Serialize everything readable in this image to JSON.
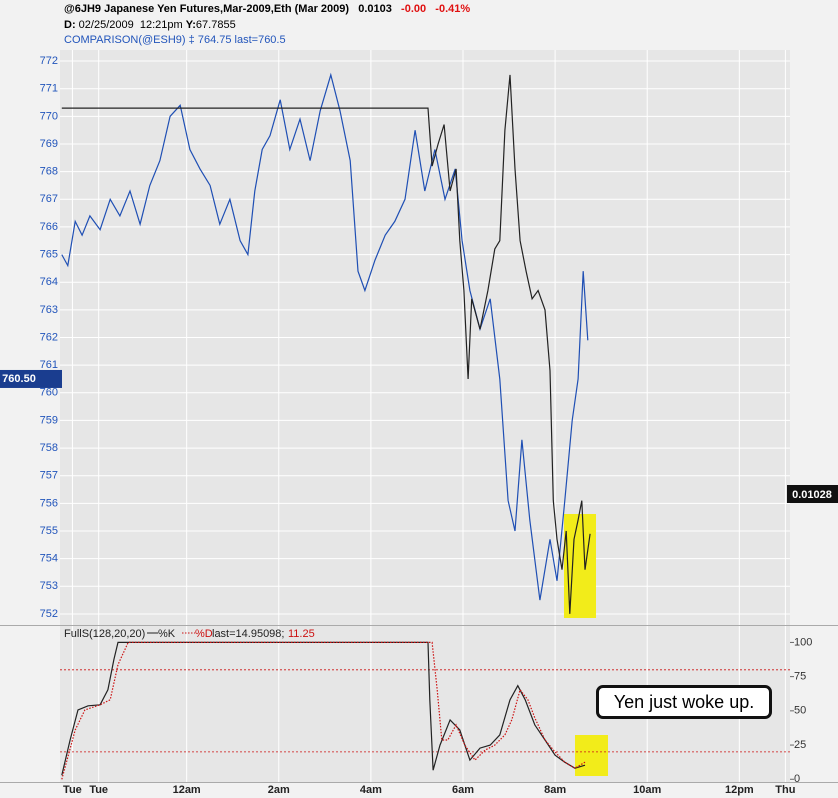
{
  "chart_data": [
    {
      "type": "line",
      "last_price": "0.0103",
      "change": "-0.00",
      "change_pct": "-0.41%",
      "cursor_label": "D:",
      "cursor_date": "02/25/2009",
      "cursor_time": "12:21pm",
      "cursor_y_label": "Y:",
      "cursor_y": "67.7855",
      "comparison_info": "‡ 764.75 last=760.5",
      "left_marker": {
        "value": 760.5,
        "label": "760.50"
      },
      "right_marker": "0.01028",
      "xlim": [
        21.25,
        37.1
      ],
      "ylim": [
        751.6,
        772.4
      ],
      "yticks": [
        752,
        753,
        754,
        755,
        756,
        757,
        758,
        759,
        760,
        761,
        762,
        763,
        764,
        765,
        766,
        767,
        768,
        769,
        770,
        771,
        772
      ],
      "grid": true,
      "series": [
        {
          "name": "COMPARISON(@ESH9)",
          "color": "#1f4fb4",
          "x": [
            21.29,
            21.42,
            21.58,
            21.73,
            21.9,
            22.12,
            22.34,
            22.55,
            22.77,
            22.99,
            23.2,
            23.42,
            23.64,
            23.86,
            24.07,
            24.29,
            24.51,
            24.72,
            24.94,
            25.16,
            25.33,
            25.48,
            25.64,
            25.81,
            26.03,
            26.24,
            26.46,
            26.68,
            26.9,
            27.13,
            27.33,
            27.55,
            27.72,
            27.87,
            28.09,
            28.31,
            28.52,
            28.74,
            28.96,
            29.17,
            29.39,
            29.61,
            29.83,
            29.98,
            30.15,
            30.37,
            30.59,
            30.8,
            30.98,
            31.13,
            31.28,
            31.45,
            31.67,
            31.89,
            32.04,
            32.21,
            32.37,
            32.5,
            32.61,
            32.71
          ],
          "values": [
            765.0,
            764.6,
            766.2,
            765.7,
            766.4,
            765.9,
            767.0,
            766.4,
            767.3,
            766.1,
            767.5,
            768.4,
            770.0,
            770.4,
            768.8,
            768.1,
            767.5,
            766.1,
            767.0,
            765.5,
            765.0,
            767.3,
            768.8,
            769.3,
            770.6,
            768.8,
            769.9,
            768.4,
            770.2,
            771.5,
            770.2,
            768.4,
            764.4,
            763.7,
            764.8,
            765.7,
            766.2,
            767.0,
            769.5,
            767.3,
            768.8,
            767.0,
            768.1,
            765.5,
            763.7,
            762.3,
            763.4,
            760.5,
            756.1,
            755.0,
            758.3,
            755.4,
            752.5,
            754.7,
            753.2,
            756.1,
            759.0,
            760.5,
            764.4,
            761.9
          ]
        },
        {
          "name": "@6JH9 Japanese Yen Futures,Mar-2009,Eth (Mar 2009)",
          "color": "#222222",
          "x": [
            21.29,
            29.24,
            29.33,
            29.46,
            29.59,
            29.72,
            29.85,
            29.93,
            30.02,
            30.11,
            30.19,
            30.37,
            30.54,
            30.69,
            30.8,
            30.91,
            31.02,
            31.13,
            31.24,
            31.37,
            31.5,
            31.63,
            31.78,
            31.89,
            31.96,
            32.04,
            32.15,
            32.24,
            32.32,
            32.41,
            32.5,
            32.58,
            32.65,
            32.76
          ],
          "values": [
            770.3,
            770.3,
            768.2,
            769.0,
            769.7,
            767.3,
            768.1,
            765.5,
            763.7,
            760.5,
            763.4,
            762.3,
            763.7,
            765.2,
            765.5,
            769.5,
            771.5,
            768.1,
            765.5,
            764.4,
            763.4,
            763.7,
            763.0,
            760.8,
            756.1,
            754.7,
            753.6,
            755.0,
            752.0,
            754.7,
            755.4,
            756.1,
            753.6,
            754.9
          ]
        }
      ]
    },
    {
      "type": "line",
      "title": "FullS(128,20,20)",
      "last_text": "last=14.95098;",
      "last_d": "11.25",
      "annotation": "Yen just woke up.",
      "xlim": [
        21.25,
        37.1
      ],
      "xticks": [
        {
          "value": 21.52,
          "label": "Tue"
        },
        {
          "value": 22.09,
          "label": "Tue"
        },
        {
          "value": 24,
          "label": "12am"
        },
        {
          "value": 26,
          "label": "2am"
        },
        {
          "value": 28,
          "label": "4am"
        },
        {
          "value": 30,
          "label": "6am"
        },
        {
          "value": 32,
          "label": "8am"
        },
        {
          "value": 34,
          "label": "10am"
        },
        {
          "value": 36,
          "label": "12pm"
        },
        {
          "value": 37.0,
          "label": "Thu"
        }
      ],
      "ylim": [
        -2,
        112
      ],
      "yticks": [
        0,
        25,
        50,
        75,
        100
      ],
      "levels": [
        80,
        20
      ],
      "series": [
        {
          "name": "%K",
          "color": "#222222",
          "dash": false,
          "x": [
            21.29,
            21.47,
            21.64,
            21.86,
            22.12,
            22.29,
            22.42,
            22.51,
            22.66,
            29.24,
            29.28,
            29.35,
            29.5,
            29.72,
            29.93,
            30.15,
            30.37,
            30.59,
            30.8,
            31.02,
            31.19,
            31.35,
            31.56,
            31.78,
            32.0,
            32.21,
            32.43,
            32.65
          ],
          "values": [
            2.9,
            28.7,
            50.7,
            53.7,
            54.4,
            65.4,
            87.5,
            100,
            100,
            100,
            58.1,
            6.6,
            25.0,
            43.4,
            36.0,
            14.0,
            22.8,
            25.0,
            32.4,
            58.1,
            68.4,
            58.1,
            39.7,
            28.7,
            17.6,
            12.5,
            8.1,
            10.3
          ]
        },
        {
          "name": "%D",
          "color": "#cc1111",
          "dash": true,
          "x": [
            21.29,
            21.58,
            21.79,
            22.12,
            22.34,
            22.51,
            22.73,
            29.33,
            29.44,
            29.54,
            29.67,
            29.85,
            30.04,
            30.26,
            30.48,
            30.69,
            30.91,
            31.06,
            31.24,
            31.41,
            31.56,
            31.78,
            32.0,
            32.21,
            32.43,
            32.65
          ],
          "values": [
            0,
            36.0,
            50.7,
            54.4,
            58.1,
            83.8,
            100,
            100,
            65.4,
            28.7,
            28.7,
            39.7,
            25.0,
            14.0,
            21.3,
            25.0,
            32.4,
            43.4,
            65.4,
            58.1,
            44.9,
            28.7,
            19.9,
            12.5,
            8.1,
            12.5
          ]
        }
      ]
    }
  ]
}
